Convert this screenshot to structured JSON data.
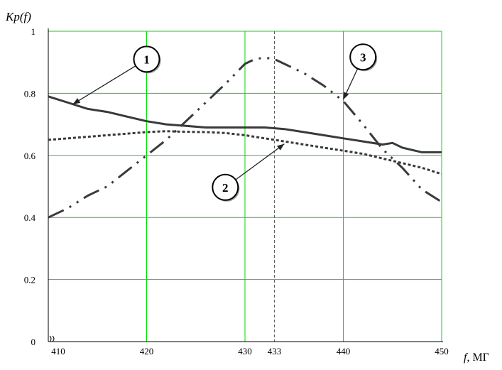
{
  "chart_data": {
    "type": "line",
    "ylabel": "Kp(f)",
    "xlabel_var": "f",
    "xlabel_unit": ", МГ",
    "xlim": [
      410,
      450
    ],
    "ylim": [
      0,
      1
    ],
    "grid": true,
    "x_ticks": [
      410,
      420,
      430,
      433,
      440,
      450
    ],
    "y_ticks": [
      0,
      0.2,
      0.4,
      0.6,
      0.8,
      1
    ],
    "y_tick_labels": [
      "0",
      "0.2",
      "0.4",
      "0.6",
      "0.8",
      "1"
    ],
    "x_gridlines": [
      420,
      430,
      440,
      450
    ],
    "y_gridlines": [
      0.2,
      0.4,
      0.6,
      0.8,
      1
    ],
    "reference_line_x": 433,
    "colors": {
      "grid": "#00dd00",
      "series": "#3a3a3a",
      "axis": "#000000"
    },
    "series": [
      {
        "name": "1",
        "style": "solid",
        "x": [
          410,
          412,
          414,
          416,
          418,
          420,
          422,
          424,
          426,
          428,
          430,
          432,
          434,
          436,
          438,
          440,
          442,
          444,
          445,
          446,
          448,
          450
        ],
        "y": [
          0.79,
          0.77,
          0.75,
          0.74,
          0.725,
          0.71,
          0.7,
          0.695,
          0.69,
          0.69,
          0.69,
          0.69,
          0.685,
          0.675,
          0.665,
          0.655,
          0.645,
          0.635,
          0.64,
          0.625,
          0.61,
          0.61
        ]
      },
      {
        "name": "2",
        "style": "dotted",
        "x": [
          410,
          412,
          414,
          416,
          418,
          420,
          422,
          424,
          426,
          428,
          430,
          432,
          434,
          436,
          438,
          440,
          442,
          444,
          446,
          448,
          450
        ],
        "y": [
          0.65,
          0.655,
          0.66,
          0.665,
          0.67,
          0.675,
          0.678,
          0.676,
          0.675,
          0.672,
          0.665,
          0.655,
          0.645,
          0.635,
          0.625,
          0.615,
          0.605,
          0.59,
          0.575,
          0.56,
          0.54
        ]
      },
      {
        "name": "3",
        "style": "dash-dot-dot",
        "x": [
          410,
          412,
          414,
          416,
          418,
          420,
          422,
          424,
          426,
          428,
          430,
          431,
          432,
          433,
          434,
          436,
          438,
          440,
          442,
          444,
          446,
          448,
          450
        ],
        "y": [
          0.4,
          0.43,
          0.47,
          0.5,
          0.55,
          0.6,
          0.65,
          0.71,
          0.77,
          0.83,
          0.895,
          0.91,
          0.915,
          0.91,
          0.895,
          0.865,
          0.825,
          0.775,
          0.7,
          0.62,
          0.56,
          0.49,
          0.45
        ]
      }
    ],
    "annotations": [
      {
        "label": "1",
        "circle": [
          420,
          0.91
        ],
        "arrow_to": [
          412.5,
          0.765
        ]
      },
      {
        "label": "2",
        "circle": [
          428,
          0.497
        ],
        "arrow_to": [
          434,
          0.637
        ]
      },
      {
        "label": "3",
        "circle": [
          442,
          0.917
        ],
        "arrow_to": [
          440,
          0.78
        ]
      }
    ]
  }
}
